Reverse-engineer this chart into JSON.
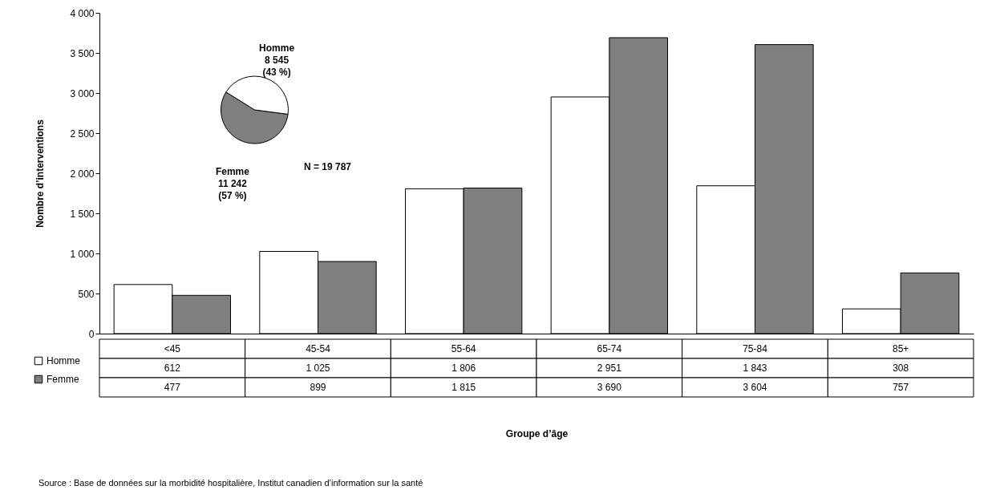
{
  "chart_data": [
    {
      "type": "bar",
      "xlabel": "Groupe d’âge",
      "ylabel": "Nombre d’interventions",
      "categories": [
        "<45",
        "45-54",
        "55-64",
        "65-74",
        "75-84",
        "85+"
      ],
      "series": [
        {
          "name": "Homme",
          "color": "#ffffff",
          "values": [
            612,
            1025,
            1806,
            2951,
            1843,
            308
          ],
          "value_labels": [
            "612",
            "1 025",
            "1 806",
            "2 951",
            "1 843",
            "308"
          ]
        },
        {
          "name": "Femme",
          "color": "#7f7f7f",
          "values": [
            477,
            899,
            1815,
            3690,
            3604,
            757
          ],
          "value_labels": [
            "477",
            "899",
            "1 815",
            "3 690",
            "3 604",
            "757"
          ]
        }
      ],
      "ylim": [
        0,
        4000
      ],
      "yticks": [
        0,
        500,
        {
          "value": 1000,
          "label": "1 000"
        },
        {
          "value": 1500,
          "label": "1 500"
        },
        {
          "value": 2000,
          "label": "2 000"
        },
        {
          "value": 2500,
          "label": "2 500"
        },
        {
          "value": 3000,
          "label": "3 000"
        },
        {
          "value": 3500,
          "label": "3 500"
        },
        {
          "value": 4000,
          "label": "4 000"
        }
      ],
      "grid": false,
      "legend": "bottom left",
      "annotations": [
        "Source : Base de données sur la morbidité hospitalière, Institut canadien d’information sur la santé"
      ]
    },
    {
      "type": "pie",
      "categories": [
        "Femme",
        "Homme"
      ],
      "values": [
        11242,
        8545
      ],
      "value_labels": [
        "11 242\n(57 %)",
        "8 545\n(43 %)"
      ],
      "colors": [
        "#7f7f7f",
        "#ffffff"
      ],
      "annotations": [
        "N = 19 787"
      ]
    }
  ]
}
